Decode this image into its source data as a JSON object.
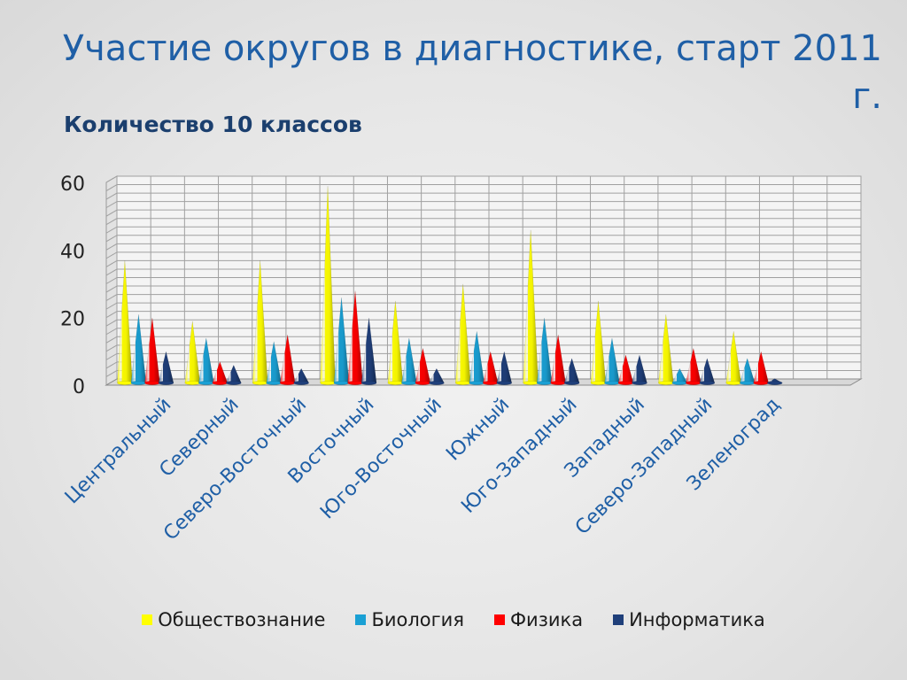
{
  "slide": {
    "title": "Участие  округов в диагностике, старт 2011 г.",
    "subtitle": "Количество 10  классов"
  },
  "chart_data": {
    "type": "bar",
    "style": "3d-cone",
    "categories": [
      "Центральный",
      "Северный",
      "Северо-Восточный",
      "Восточный",
      "Юго-Восточный",
      "Южный",
      "Юго-Западный",
      "Западный",
      "Северо-Западный",
      "Зеленоград"
    ],
    "series": [
      {
        "name": "Обществознание",
        "color": "#ffff00",
        "values": [
          36,
          18,
          36,
          58,
          24,
          29,
          45,
          24,
          20,
          15
        ]
      },
      {
        "name": "Биология",
        "color": "#1aa0d4",
        "values": [
          20,
          13,
          12,
          25,
          13,
          15,
          19,
          13,
          4,
          7
        ]
      },
      {
        "name": "Физика",
        "color": "#ff0000",
        "values": [
          19,
          6,
          14,
          27,
          10,
          9,
          14,
          8,
          10,
          9
        ]
      },
      {
        "name": "Информатика",
        "color": "#1f3f7a",
        "values": [
          9,
          5,
          4,
          19,
          4,
          9,
          7,
          8,
          7,
          1
        ]
      }
    ],
    "ylim": [
      0,
      60
    ],
    "yticks": [
      0,
      20,
      40,
      60
    ],
    "grid": true,
    "legend_position": "bottom"
  }
}
